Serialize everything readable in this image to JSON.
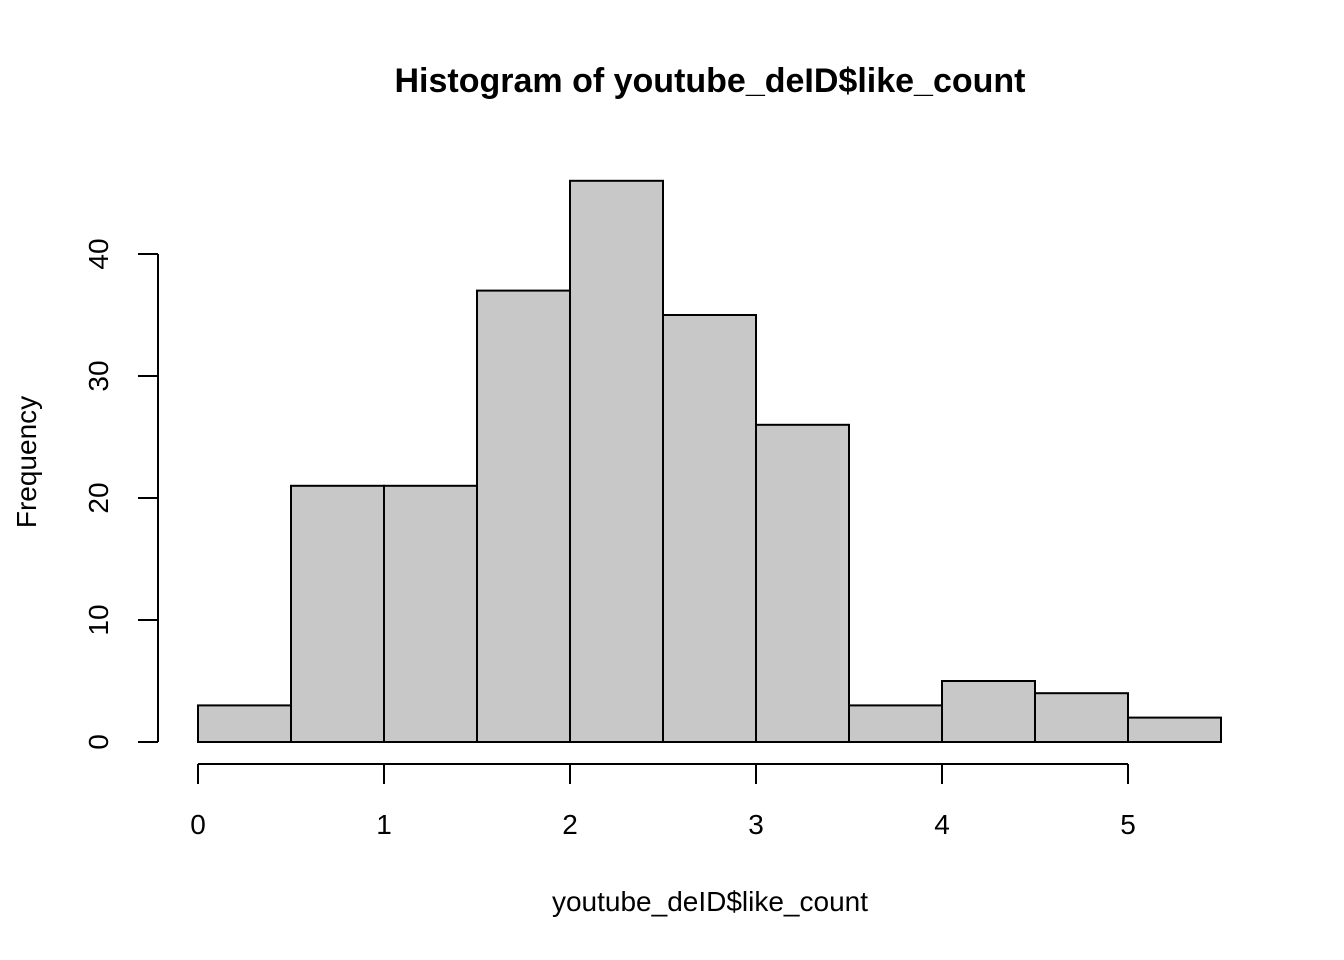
{
  "chart_data": {
    "type": "bar",
    "title": "Histogram of youtube_deID$like_count",
    "xlabel": "youtube_deID$like_count",
    "ylabel": "Frequency",
    "bins": [
      {
        "start": 0.0,
        "end": 0.5,
        "count": 3
      },
      {
        "start": 0.5,
        "end": 1.0,
        "count": 21
      },
      {
        "start": 1.0,
        "end": 1.5,
        "count": 21
      },
      {
        "start": 1.5,
        "end": 2.0,
        "count": 37
      },
      {
        "start": 2.0,
        "end": 2.5,
        "count": 46
      },
      {
        "start": 2.5,
        "end": 3.0,
        "count": 35
      },
      {
        "start": 3.0,
        "end": 3.5,
        "count": 26
      },
      {
        "start": 3.5,
        "end": 4.0,
        "count": 3
      },
      {
        "start": 4.0,
        "end": 4.5,
        "count": 5
      },
      {
        "start": 4.5,
        "end": 5.0,
        "count": 4
      },
      {
        "start": 5.0,
        "end": 5.5,
        "count": 2
      }
    ],
    "xticks": [
      0,
      1,
      2,
      3,
      4,
      5
    ],
    "yticks": [
      0,
      10,
      20,
      30,
      40
    ],
    "xlim": [
      0,
      5.5
    ],
    "ylim": [
      0,
      46
    ],
    "grid": false,
    "bar_color": "#c8c8c8",
    "border_color": "#000000"
  }
}
